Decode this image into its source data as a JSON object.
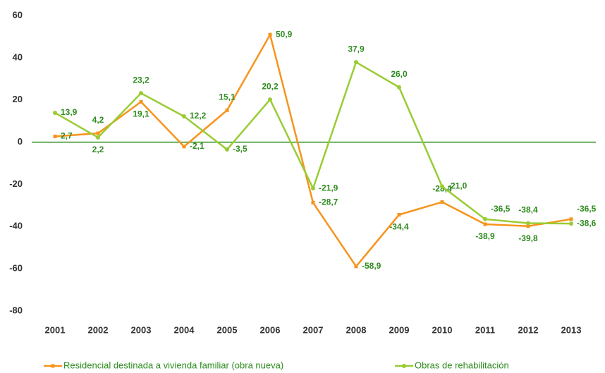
{
  "chart_data": {
    "type": "line",
    "categories": [
      "2001",
      "2002",
      "2003",
      "2004",
      "2005",
      "2006",
      "2007",
      "2008",
      "2009",
      "2010",
      "2011",
      "2012",
      "2013"
    ],
    "series": [
      {
        "name": "Residencial destinada a vivienda familiar (obra nueva)",
        "color": "#f7941d",
        "values": [
          2.7,
          4.2,
          19.1,
          -2.1,
          15.1,
          50.9,
          -28.7,
          -58.9,
          -34.4,
          -28.4,
          -38.9,
          -39.8,
          -36.5
        ],
        "value_labels": [
          "2,7",
          "4,2",
          "19,1",
          "-2,1",
          "15,1",
          "50,9",
          "-28,7",
          "-58,9",
          "-34,4",
          "-28,4",
          "-38,9",
          "-39,8",
          "-36,5"
        ]
      },
      {
        "name": "Obras de rehabilitación",
        "color": "#99cc33",
        "values": [
          13.9,
          2.2,
          23.2,
          12.2,
          -3.5,
          20.2,
          -21.9,
          37.9,
          26.0,
          -21.0,
          -36.5,
          -38.4,
          -38.6
        ],
        "value_labels": [
          "13,9",
          "2,2",
          "23,2",
          "12,2",
          "-3,5",
          "20,2",
          "-21,9",
          "37,9",
          "26,0",
          "-21,0",
          "-36,5",
          "-38,4",
          "-38,6"
        ]
      }
    ],
    "ylim": [
      -80,
      60
    ],
    "yticks": [
      -80,
      -60,
      -40,
      -20,
      0,
      20,
      40,
      60
    ],
    "legend": "bottom"
  }
}
